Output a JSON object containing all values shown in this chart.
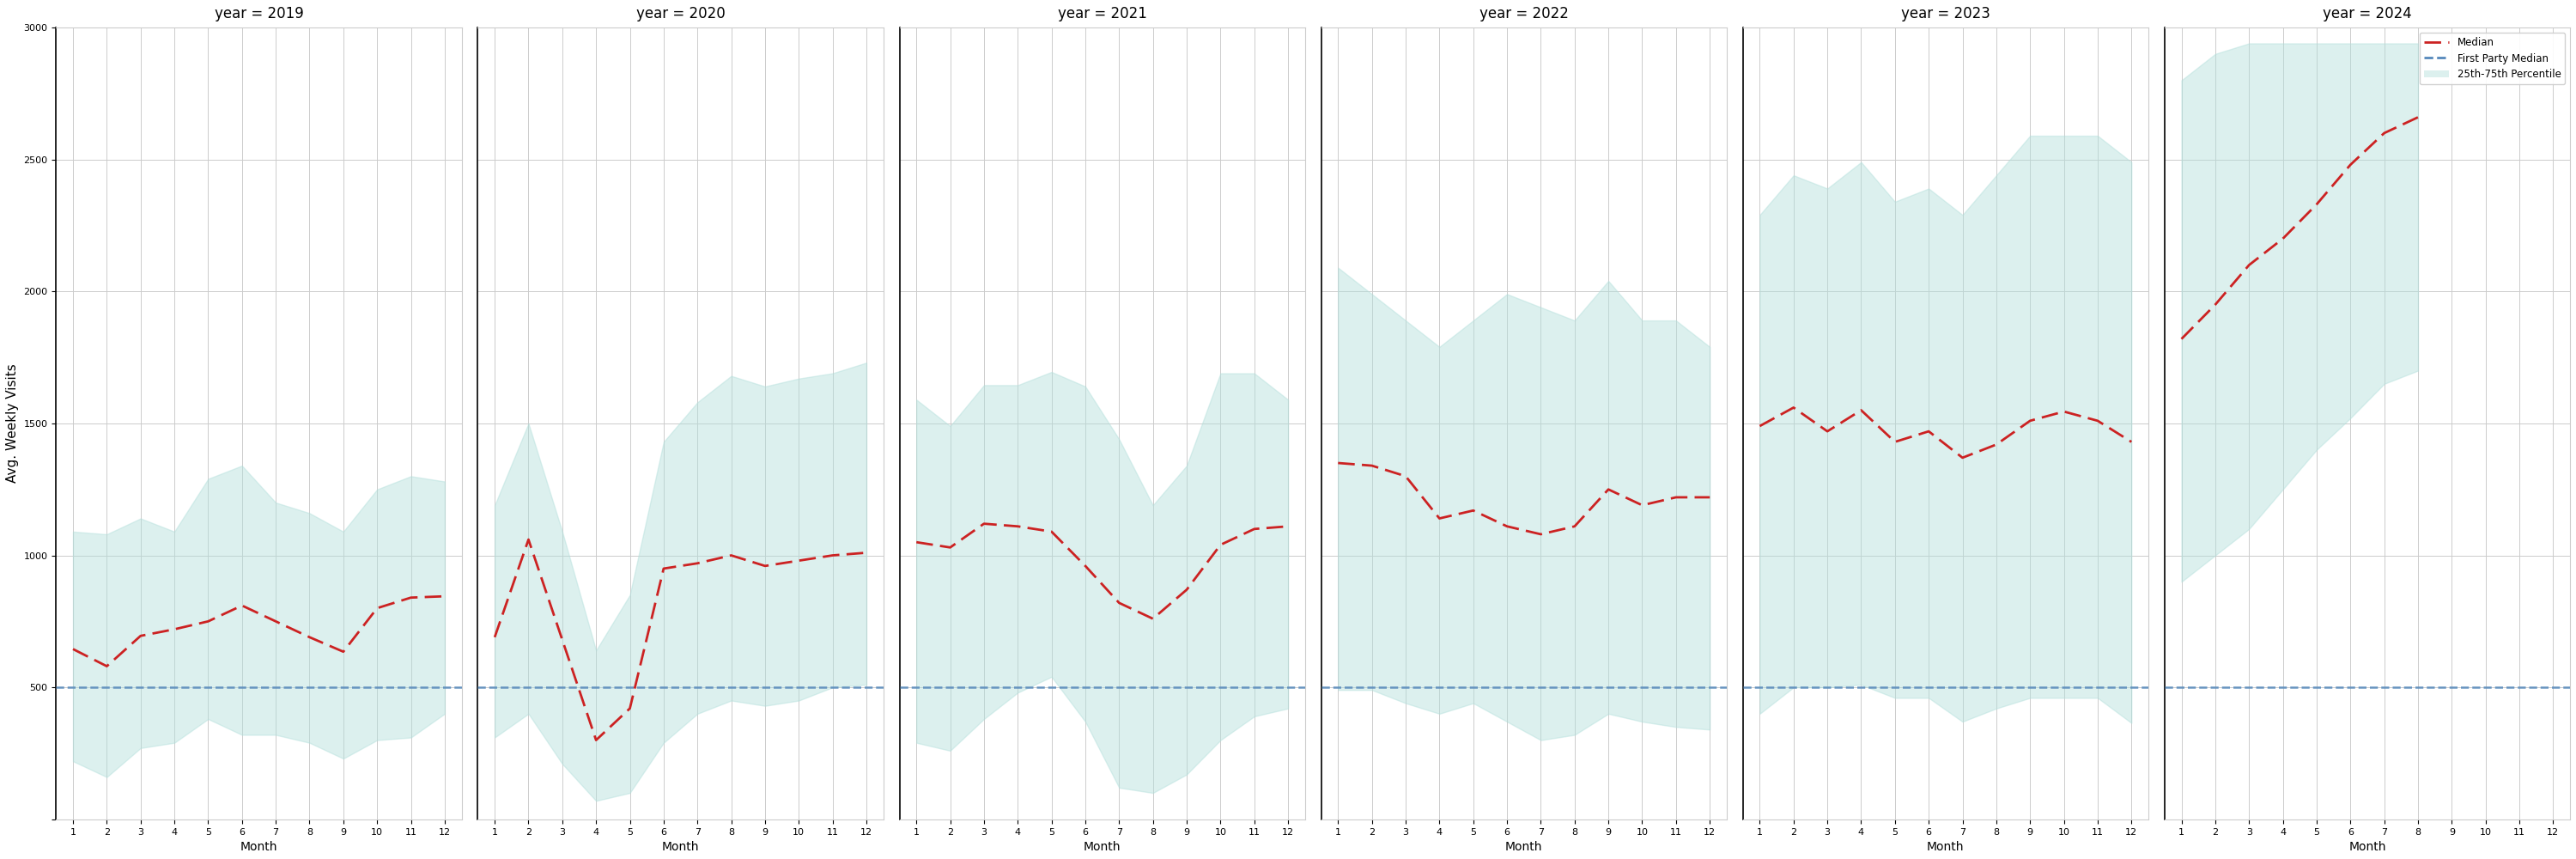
{
  "years": [
    2019,
    2020,
    2021,
    2022,
    2023,
    2024
  ],
  "months": [
    1,
    2,
    3,
    4,
    5,
    6,
    7,
    8,
    9,
    10,
    11,
    12
  ],
  "ylabel": "Avg. Weekly Visits",
  "xlabel": "Month",
  "ylim": [
    0,
    3000
  ],
  "yticks": [
    0,
    500,
    1000,
    1500,
    2000,
    2500,
    3000
  ],
  "first_party_median": 500,
  "fill_color": "#b2dfdb",
  "fill_alpha": 0.45,
  "median_color": "#cc2222",
  "fp_median_color": "#5588bb",
  "bg_color": "#ffffff",
  "median_data": {
    "2019": [
      645,
      580,
      695,
      720,
      750,
      810,
      750,
      690,
      635,
      800,
      840,
      845
    ],
    "2020": [
      690,
      1060,
      680,
      300,
      420,
      950,
      970,
      1000,
      960,
      980,
      1000,
      1010
    ],
    "2021": [
      1050,
      1030,
      1120,
      1110,
      1090,
      960,
      820,
      760,
      870,
      1040,
      1100,
      1110
    ],
    "2022": [
      1350,
      1340,
      1300,
      1140,
      1170,
      1110,
      1080,
      1110,
      1250,
      1190,
      1220,
      1220
    ],
    "2023": [
      1490,
      1560,
      1470,
      1550,
      1430,
      1470,
      1370,
      1420,
      1510,
      1545,
      1510,
      1430
    ],
    "2024": [
      1820,
      1950,
      2100,
      2200,
      2330,
      2480,
      2600,
      2660
    ]
  },
  "p25_data": {
    "2019": [
      220,
      160,
      270,
      290,
      380,
      320,
      320,
      290,
      230,
      300,
      310,
      400
    ],
    "2020": [
      310,
      400,
      210,
      70,
      100,
      290,
      400,
      450,
      430,
      450,
      500,
      510
    ],
    "2021": [
      290,
      260,
      380,
      480,
      540,
      370,
      120,
      100,
      170,
      300,
      390,
      420
    ],
    "2022": [
      490,
      490,
      440,
      400,
      440,
      370,
      300,
      320,
      400,
      370,
      350,
      340
    ],
    "2023": [
      400,
      500,
      500,
      510,
      460,
      460,
      370,
      420,
      460,
      460,
      460,
      365
    ],
    "2024": [
      900,
      1000,
      1100,
      1250,
      1400,
      1520,
      1650,
      1700
    ]
  },
  "p75_data": {
    "2019": [
      1090,
      1080,
      1140,
      1090,
      1290,
      1340,
      1200,
      1160,
      1090,
      1250,
      1300,
      1280
    ],
    "2020": [
      1190,
      1500,
      1090,
      640,
      850,
      1430,
      1580,
      1680,
      1640,
      1670,
      1690,
      1730
    ],
    "2021": [
      1590,
      1490,
      1645,
      1645,
      1695,
      1640,
      1440,
      1190,
      1340,
      1690,
      1690,
      1590
    ],
    "2022": [
      2090,
      1990,
      1890,
      1790,
      1890,
      1990,
      1940,
      1890,
      2040,
      1890,
      1890,
      1790
    ],
    "2023": [
      2290,
      2440,
      2390,
      2490,
      2340,
      2390,
      2290,
      2440,
      2590,
      2590,
      2590,
      2490
    ],
    "2024": [
      2800,
      2900,
      2940,
      2940,
      2940,
      2940,
      2940,
      2940
    ]
  }
}
